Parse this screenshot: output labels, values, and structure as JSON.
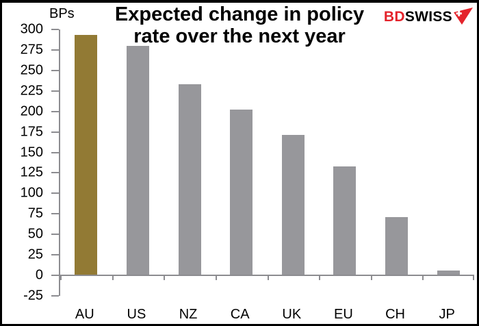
{
  "header": {
    "title_line1": "Expected change in policy",
    "title_line2": "rate over the next year",
    "logo": {
      "prefix": "BD",
      "suffix": "SWISS",
      "prefix_color": "#e4232b",
      "suffix_color": "#000000",
      "icon": "swiss-flag-arrow-icon"
    }
  },
  "chart_data": {
    "type": "bar",
    "title": "Expected change in policy rate over the next year",
    "unit": "BPs",
    "categories": [
      "AU",
      "US",
      "NZ",
      "CA",
      "UK",
      "EU",
      "CH",
      "JP"
    ],
    "values": [
      293,
      280,
      233,
      202,
      171,
      133,
      71,
      6
    ],
    "ylim": [
      -25,
      300
    ],
    "ytick_step": 25,
    "yticks": [
      300,
      275,
      250,
      225,
      200,
      175,
      150,
      125,
      100,
      75,
      50,
      25,
      0,
      -25
    ],
    "xlabel": "",
    "ylabel": "BPs",
    "grid": false,
    "legend": false,
    "bar_colors": {
      "highlight_index": 0,
      "highlight": "#927a34",
      "default": "#97979b"
    },
    "axis_color": "#8c8c90"
  }
}
